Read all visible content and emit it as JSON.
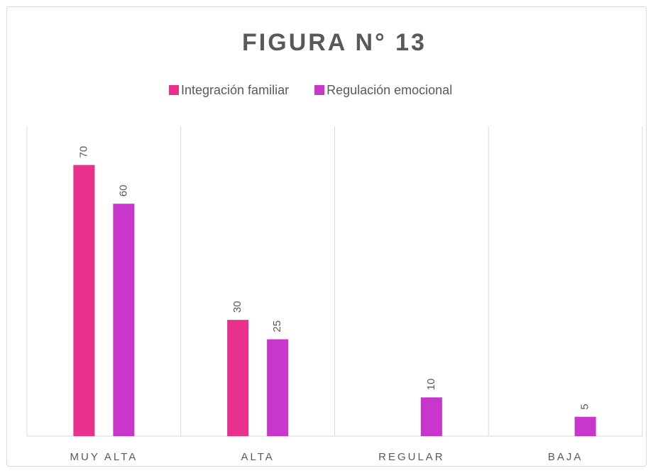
{
  "chart_data": {
    "type": "bar",
    "title": "FIGURA N° 13",
    "categories": [
      "MUY ALTA",
      "ALTA",
      "REGULAR",
      "BAJA"
    ],
    "series": [
      {
        "name": "Integración familiar",
        "color": "#e8308c",
        "values": [
          70,
          30,
          null,
          null
        ]
      },
      {
        "name": "Regulación emocional",
        "color": "#c936cc",
        "values": [
          60,
          25,
          10,
          5
        ]
      }
    ],
    "ylim": [
      0,
      80
    ]
  }
}
